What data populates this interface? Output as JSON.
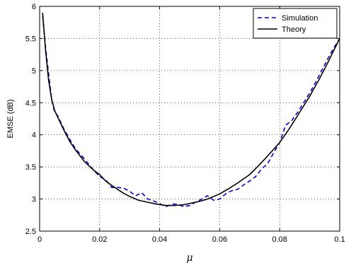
{
  "chart_data": {
    "type": "line",
    "title": "",
    "xlabel": "μ",
    "ylabel": "EMSE (dB)",
    "xlim": [
      0,
      0.1
    ],
    "ylim": [
      2.5,
      6
    ],
    "x_ticks": [
      "0",
      "0.02",
      "0.04",
      "0.06",
      "0.08",
      "0.1"
    ],
    "y_ticks": [
      "2.5",
      "3",
      "3.5",
      "4",
      "4.5",
      "5",
      "5.5",
      "6"
    ],
    "x_tick_values": [
      0,
      0.02,
      0.04,
      0.06,
      0.08,
      0.1
    ],
    "y_tick_values": [
      2.5,
      3,
      3.5,
      4,
      4.5,
      5,
      5.5,
      6
    ],
    "grid": true,
    "legend_position": "top-right",
    "series": [
      {
        "name": "Simulation",
        "style": "dashed",
        "color": "#0000cc",
        "x": [
          0.001,
          0.002,
          0.003,
          0.004,
          0.005,
          0.006,
          0.008,
          0.01,
          0.012,
          0.015,
          0.018,
          0.02,
          0.022,
          0.024,
          0.026,
          0.028,
          0.03,
          0.032,
          0.034,
          0.036,
          0.038,
          0.04,
          0.042,
          0.044,
          0.046,
          0.048,
          0.05,
          0.052,
          0.054,
          0.056,
          0.058,
          0.06,
          0.062,
          0.064,
          0.066,
          0.068,
          0.07,
          0.072,
          0.074,
          0.076,
          0.078,
          0.08,
          0.082,
          0.084,
          0.086,
          0.088,
          0.09,
          0.092,
          0.094,
          0.096,
          0.098,
          0.1
        ],
        "y": [
          5.85,
          5.35,
          4.95,
          4.55,
          4.35,
          4.3,
          4.1,
          3.93,
          3.78,
          3.62,
          3.45,
          3.35,
          3.3,
          3.18,
          3.18,
          3.17,
          3.12,
          3.05,
          3.1,
          3.0,
          2.97,
          2.93,
          2.88,
          2.92,
          2.92,
          2.88,
          2.9,
          2.95,
          3.0,
          3.05,
          2.98,
          3.0,
          3.08,
          3.13,
          3.15,
          3.22,
          3.28,
          3.35,
          3.47,
          3.55,
          3.72,
          3.88,
          4.15,
          4.22,
          4.35,
          4.5,
          4.65,
          4.82,
          5.0,
          5.18,
          5.35,
          5.5
        ]
      },
      {
        "name": "Theory",
        "style": "solid",
        "color": "#000000",
        "x": [
          0.001,
          0.002,
          0.003,
          0.004,
          0.005,
          0.006,
          0.008,
          0.01,
          0.012,
          0.015,
          0.018,
          0.02,
          0.022,
          0.025,
          0.028,
          0.03,
          0.033,
          0.036,
          0.039,
          0.042,
          0.045,
          0.048,
          0.05,
          0.053,
          0.056,
          0.06,
          0.063,
          0.066,
          0.07,
          0.073,
          0.076,
          0.08,
          0.083,
          0.086,
          0.09,
          0.093,
          0.096,
          0.1
        ],
        "y": [
          5.9,
          5.3,
          4.85,
          4.55,
          4.38,
          4.28,
          4.08,
          3.9,
          3.76,
          3.58,
          3.45,
          3.38,
          3.28,
          3.18,
          3.09,
          3.04,
          2.98,
          2.95,
          2.92,
          2.9,
          2.9,
          2.91,
          2.93,
          2.96,
          3.0,
          3.08,
          3.16,
          3.25,
          3.38,
          3.52,
          3.67,
          3.88,
          4.08,
          4.3,
          4.6,
          4.85,
          5.12,
          5.5
        ]
      }
    ]
  }
}
